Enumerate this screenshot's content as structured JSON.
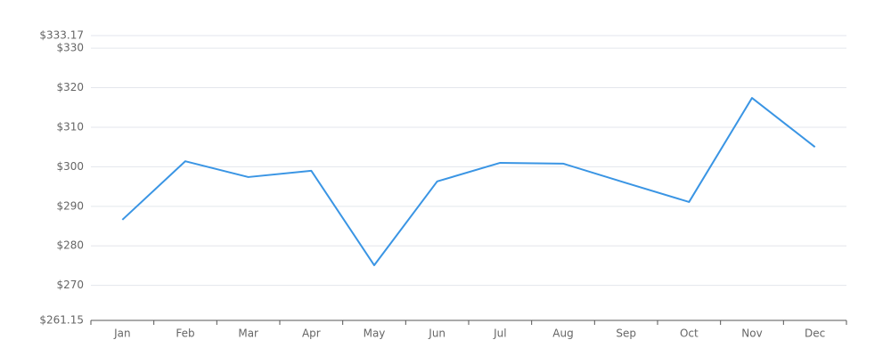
{
  "chart_data": {
    "type": "line",
    "categories": [
      "Jan",
      "Feb",
      "Mar",
      "Apr",
      "May",
      "Jun",
      "Jul",
      "Aug",
      "Sep",
      "Oct",
      "Nov",
      "Dec"
    ],
    "series": [
      {
        "color": "#3a95e4",
        "values": [
          286.6,
          301.4,
          297.4,
          299.0,
          275.1,
          296.3,
          301.0,
          300.8,
          295.9,
          291.1,
          317.4,
          305.0
        ]
      }
    ],
    "ylim": [
      261.15,
      333.17
    ],
    "yticks": [
      {
        "value": 261.15,
        "label": "$261.15"
      },
      {
        "value": 270,
        "label": "$270"
      },
      {
        "value": 280,
        "label": "$280"
      },
      {
        "value": 290,
        "label": "$290"
      },
      {
        "value": 300,
        "label": "$300"
      },
      {
        "value": 310,
        "label": "$310"
      },
      {
        "value": 320,
        "label": "$320"
      },
      {
        "value": 330,
        "label": "$330"
      },
      {
        "value": 333.17,
        "label": "$333.17"
      }
    ],
    "grid": true
  }
}
